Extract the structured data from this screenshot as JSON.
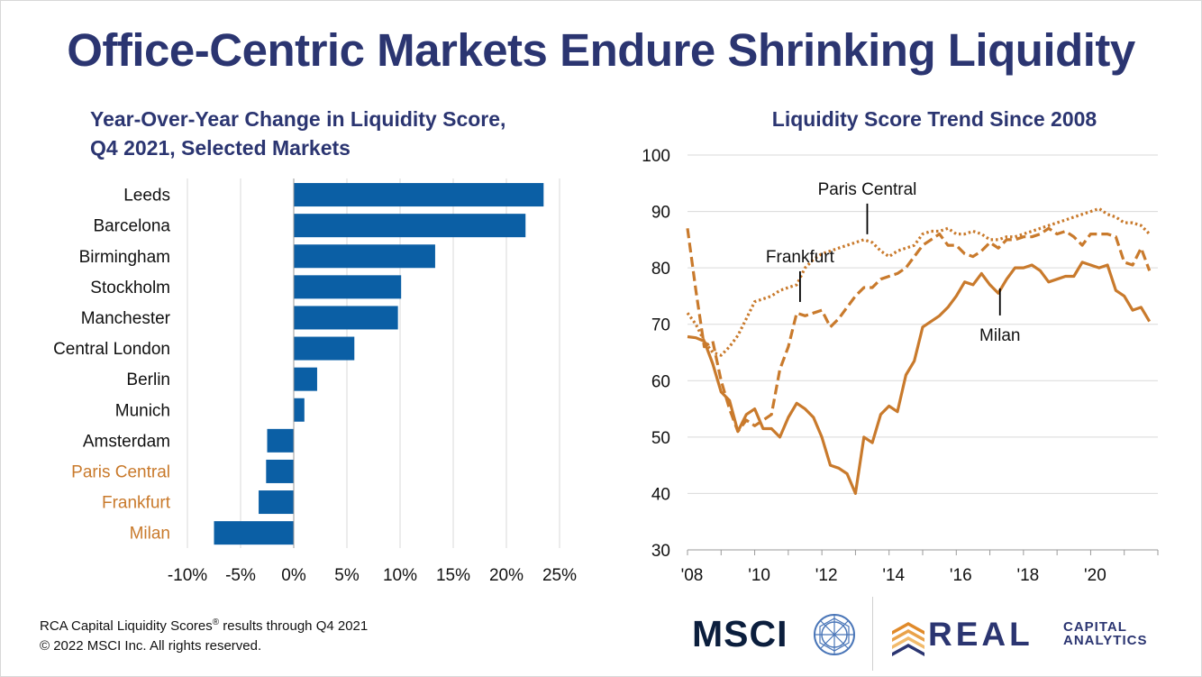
{
  "title": "Office-Centric Markets Endure Shrinking Liquidity",
  "left_subtitle": [
    "Year-Over-Year Change in Liquidity Score,",
    "Q4 2021, Selected Markets"
  ],
  "right_subtitle": "Liquidity Score Trend Since 2008",
  "footer": {
    "line1": "RCA Capital Liquidity Scores",
    "line1_super": "®",
    "line1_tail": " results through Q4 2021",
    "line2": "© 2022 MSCI Inc. All rights reserved."
  },
  "logos": {
    "msci": "MSCI",
    "rca_main": "REAL",
    "rca_line1": "CAPITAL",
    "rca_line2": "ANALYTICS"
  },
  "colors": {
    "navy": "#2b3571",
    "bar_blue": "#0b5fa5",
    "orange": "#c97a2c",
    "grid": "#d9d9d9"
  },
  "chart_data": [
    {
      "type": "bar",
      "orientation": "horizontal",
      "title": "Year-Over-Year Change in Liquidity Score, Q4 2021, Selected Markets",
      "categories": [
        "Leeds",
        "Barcelona",
        "Birmingham",
        "Stockholm",
        "Manchester",
        "Central London",
        "Berlin",
        "Munich",
        "Amsterdam",
        "Paris Central",
        "Frankfurt",
        "Milan"
      ],
      "highlighted": [
        "Paris Central",
        "Frankfurt",
        "Milan"
      ],
      "values": [
        23.5,
        21.8,
        13.3,
        10.1,
        9.8,
        5.7,
        2.2,
        1.0,
        -2.5,
        -2.6,
        -3.3,
        -7.5
      ],
      "xlim": [
        -10,
        25
      ],
      "xticks": [
        -10,
        -5,
        0,
        5,
        10,
        15,
        20,
        25
      ],
      "xtick_labels": [
        "-10%",
        "-5%",
        "0%",
        "5%",
        "10%",
        "15%",
        "20%",
        "25%"
      ],
      "grid": true
    },
    {
      "type": "line",
      "title": "Liquidity Score Trend Since 2008",
      "xlim": [
        2008,
        2022
      ],
      "ylim": [
        30,
        100
      ],
      "yticks": [
        30,
        40,
        50,
        60,
        70,
        80,
        90,
        100
      ],
      "xticks": [
        2008,
        2010,
        2012,
        2014,
        2016,
        2018,
        2020
      ],
      "xtick_labels": [
        "'08",
        "'10",
        "'12",
        "'14",
        "'16",
        "'18",
        "'20"
      ],
      "grid": true,
      "series": [
        {
          "name": "Paris Central",
          "style": "dotted",
          "x": [
            2008.0,
            2008.25,
            2008.5,
            2008.75,
            2009.0,
            2009.25,
            2009.5,
            2009.75,
            2010.0,
            2010.25,
            2010.5,
            2010.75,
            2011.0,
            2011.25,
            2011.5,
            2011.75,
            2012.0,
            2012.25,
            2012.5,
            2012.75,
            2013.0,
            2013.25,
            2013.5,
            2013.75,
            2014.0,
            2014.25,
            2014.5,
            2014.75,
            2015.0,
            2015.25,
            2015.5,
            2015.75,
            2016.0,
            2016.25,
            2016.5,
            2016.75,
            2017.0,
            2017.25,
            2017.5,
            2017.75,
            2018.0,
            2018.25,
            2018.5,
            2018.75,
            2019.0,
            2019.25,
            2019.5,
            2019.75,
            2020.0,
            2020.25,
            2020.5,
            2020.75,
            2021.0,
            2021.25,
            2021.5,
            2021.75
          ],
          "y": [
            72,
            70,
            67,
            65,
            64.5,
            66,
            68,
            71,
            74,
            74.5,
            75,
            76,
            76.5,
            77,
            80,
            81.5,
            82.5,
            83,
            83.5,
            84,
            84.5,
            85,
            84.5,
            83,
            82,
            83,
            83.5,
            84,
            86,
            86.5,
            86.5,
            87,
            86,
            86,
            86.5,
            86,
            85,
            85,
            85.5,
            85.5,
            86,
            86.5,
            87,
            87.5,
            88,
            88.5,
            89,
            89.5,
            90,
            90.5,
            89.5,
            89,
            88,
            88,
            87.5,
            86
          ]
        },
        {
          "name": "Frankfurt",
          "style": "dashed",
          "x": [
            2008.0,
            2008.25,
            2008.5,
            2008.75,
            2009.0,
            2009.25,
            2009.5,
            2009.75,
            2010.0,
            2010.25,
            2010.5,
            2010.75,
            2011.0,
            2011.25,
            2011.5,
            2011.75,
            2012.0,
            2012.25,
            2012.5,
            2012.75,
            2013.0,
            2013.25,
            2013.5,
            2013.75,
            2014.0,
            2014.25,
            2014.5,
            2014.75,
            2015.0,
            2015.25,
            2015.5,
            2015.75,
            2016.0,
            2016.25,
            2016.5,
            2016.75,
            2017.0,
            2017.25,
            2017.5,
            2017.75,
            2018.0,
            2018.25,
            2018.5,
            2018.75,
            2019.0,
            2019.25,
            2019.5,
            2019.75,
            2020.0,
            2020.25,
            2020.5,
            2020.75,
            2021.0,
            2021.25,
            2021.5,
            2021.75
          ],
          "y": [
            87,
            76,
            66,
            67,
            60,
            55,
            51,
            53,
            52,
            53,
            54,
            62,
            66,
            72,
            71.5,
            72,
            72.5,
            69.5,
            71,
            73,
            75,
            76.5,
            76.5,
            78,
            78.5,
            79,
            80,
            82,
            84,
            85,
            86,
            84,
            84,
            82.5,
            82,
            83,
            84.5,
            83.5,
            85,
            85,
            85.5,
            85.5,
            86,
            87,
            86,
            86.5,
            85.5,
            84,
            86,
            86,
            86,
            85.5,
            81,
            80.5,
            83.5,
            79.5
          ]
        },
        {
          "name": "Milan",
          "style": "solid",
          "x": [
            2008.0,
            2008.25,
            2008.5,
            2008.75,
            2009.0,
            2009.25,
            2009.5,
            2009.75,
            2010.0,
            2010.25,
            2010.5,
            2010.75,
            2011.0,
            2011.25,
            2011.5,
            2011.75,
            2012.0,
            2012.25,
            2012.5,
            2012.75,
            2013.0,
            2013.25,
            2013.5,
            2013.75,
            2014.0,
            2014.25,
            2014.5,
            2014.75,
            2015.0,
            2015.25,
            2015.5,
            2015.75,
            2016.0,
            2016.25,
            2016.5,
            2016.75,
            2017.0,
            2017.25,
            2017.5,
            2017.75,
            2018.0,
            2018.25,
            2018.5,
            2018.75,
            2019.0,
            2019.25,
            2019.5,
            2019.75,
            2020.0,
            2020.25,
            2020.5,
            2020.75,
            2021.0,
            2021.25,
            2021.5,
            2021.75
          ],
          "y": [
            67.8,
            67.6,
            67,
            63,
            58,
            56.5,
            51,
            54,
            55,
            51.5,
            51.5,
            50,
            53.5,
            56,
            55,
            53.5,
            50,
            45,
            44.5,
            43.5,
            40,
            50,
            49,
            54,
            55.5,
            54.5,
            61,
            63.5,
            69.5,
            70.5,
            71.5,
            73,
            75,
            77.5,
            77,
            79,
            77,
            75.5,
            78,
            80,
            80,
            80.5,
            79.5,
            77.5,
            78,
            78.5,
            78.5,
            81,
            80.5,
            80,
            80.5,
            76,
            75,
            72.5,
            73,
            70.5
          ]
        }
      ],
      "annotations": [
        {
          "text": "Paris Central",
          "x": 2013.35,
          "y": 85
        },
        {
          "text": "Frankfurt",
          "x": 2011.35,
          "y": 73
        },
        {
          "text": "Milan",
          "x": 2017.3,
          "y": 77
        }
      ]
    }
  ]
}
